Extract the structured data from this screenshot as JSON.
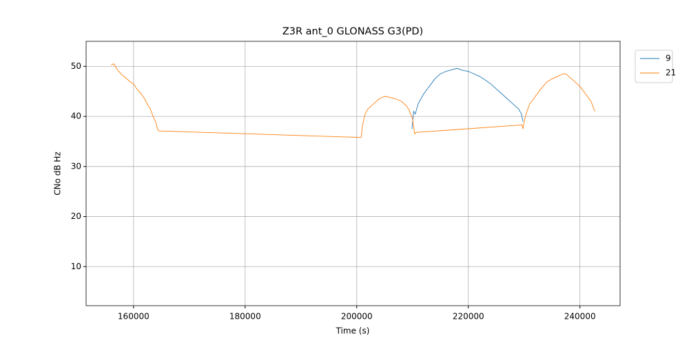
{
  "chart_data": {
    "type": "line",
    "title": "Z3R ant_0 GLONASS G3(PD)",
    "x_label": "Time (s)",
    "y_label": "CNo dB Hz",
    "xlim": [
      151500,
      247200
    ],
    "ylim": [
      2.2,
      55
    ],
    "xticks": [
      160000,
      180000,
      200000,
      220000,
      240000
    ],
    "yticks": [
      10,
      20,
      30,
      40,
      50
    ],
    "grid": true,
    "legend": "outside-upper-right",
    "series": [
      {
        "name": "9",
        "color": "#1f77b4",
        "x": [
          209900,
          210200,
          210500,
          211000,
          212000,
          213000,
          214000,
          215000,
          216000,
          217000,
          218000,
          219000,
          220000,
          221000,
          222000,
          223000,
          224000,
          225000,
          226000,
          227000,
          228000,
          229000,
          229500,
          229800
        ],
        "values": [
          37.5,
          41,
          40.5,
          42.5,
          44.5,
          46,
          47.5,
          48.5,
          49,
          49.3,
          49.6,
          49.2,
          49,
          48.5,
          48,
          47.3,
          46.5,
          45.5,
          44.5,
          43.5,
          42.5,
          41.5,
          40.5,
          39
        ]
      },
      {
        "name": "21",
        "color": "#ff7f0e",
        "x": [
          156000,
          156500,
          157000,
          157500,
          158000,
          158500,
          159000,
          159500,
          160000,
          160500,
          161000,
          161500,
          162000,
          162500,
          163000,
          163500,
          164000,
          164300,
          164500,
          200800,
          201000,
          201500,
          202000,
          203000,
          204000,
          205000,
          206000,
          207000,
          208000,
          209000,
          209500,
          210000,
          210400,
          210600,
          229600,
          229800,
          230000,
          230500,
          231000,
          232000,
          233000,
          234000,
          235000,
          236000,
          237000,
          237500,
          238000,
          239000,
          240000,
          241000,
          242000,
          242500,
          242700
        ],
        "values": [
          50.3,
          50.5,
          49.5,
          48.8,
          48.2,
          47.8,
          47.3,
          46.8,
          46.5,
          45.6,
          45,
          44.3,
          43.5,
          42.4,
          41.5,
          40,
          38.8,
          37.5,
          37.1,
          35.8,
          38,
          40.5,
          41.5,
          42.5,
          43.5,
          44,
          43.8,
          43.5,
          43,
          42,
          41,
          39.5,
          36.5,
          36.8,
          38.3,
          37.5,
          39,
          41,
          42.5,
          44,
          45.5,
          46.8,
          47.5,
          48,
          48.5,
          48.5,
          48,
          47,
          46,
          44.5,
          43,
          41.5,
          41
        ]
      }
    ]
  }
}
